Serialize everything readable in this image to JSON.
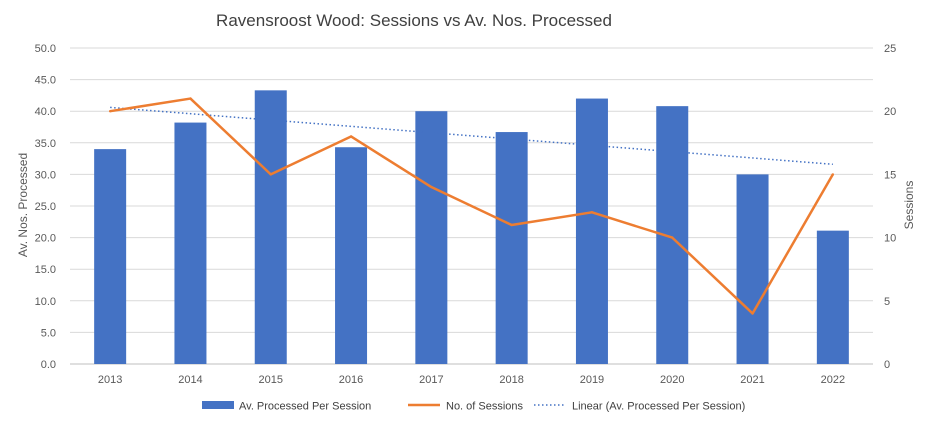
{
  "chart_data": {
    "type": "bar",
    "title": "Ravensroost Wood: Sessions vs Av. Nos. Processed",
    "categories": [
      "2013",
      "2014",
      "2015",
      "2016",
      "2017",
      "2018",
      "2019",
      "2020",
      "2021",
      "2022"
    ],
    "series": [
      {
        "name": "Av. Processed Per Session",
        "type": "bar",
        "axis": "left",
        "color": "#4472C4",
        "values": [
          34.0,
          38.2,
          43.3,
          34.3,
          40.0,
          36.7,
          42.0,
          40.8,
          30.0,
          21.1
        ]
      },
      {
        "name": "No. of Sessions",
        "type": "line",
        "axis": "right",
        "color": "#ED7D31",
        "values": [
          20,
          21,
          15,
          18,
          14,
          11,
          12,
          10,
          4,
          15
        ]
      },
      {
        "name": "Linear (Av. Processed Per Session)",
        "type": "trendline",
        "axis": "left",
        "color": "#4472C4",
        "style": "dotted",
        "start": 40.6,
        "end": 31.6
      }
    ],
    "ylabel": "Av. Nos. Processed",
    "ylim": [
      0,
      50
    ],
    "yticks": [
      "0.0",
      "5.0",
      "10.0",
      "15.0",
      "20.0",
      "25.0",
      "30.0",
      "35.0",
      "40.0",
      "45.0",
      "50.0"
    ],
    "y2label": "Sessions",
    "y2lim": [
      0,
      25
    ],
    "y2ticks": [
      "0",
      "5",
      "10",
      "15",
      "20",
      "25"
    ],
    "grid": true,
    "legend_position": "bottom"
  }
}
